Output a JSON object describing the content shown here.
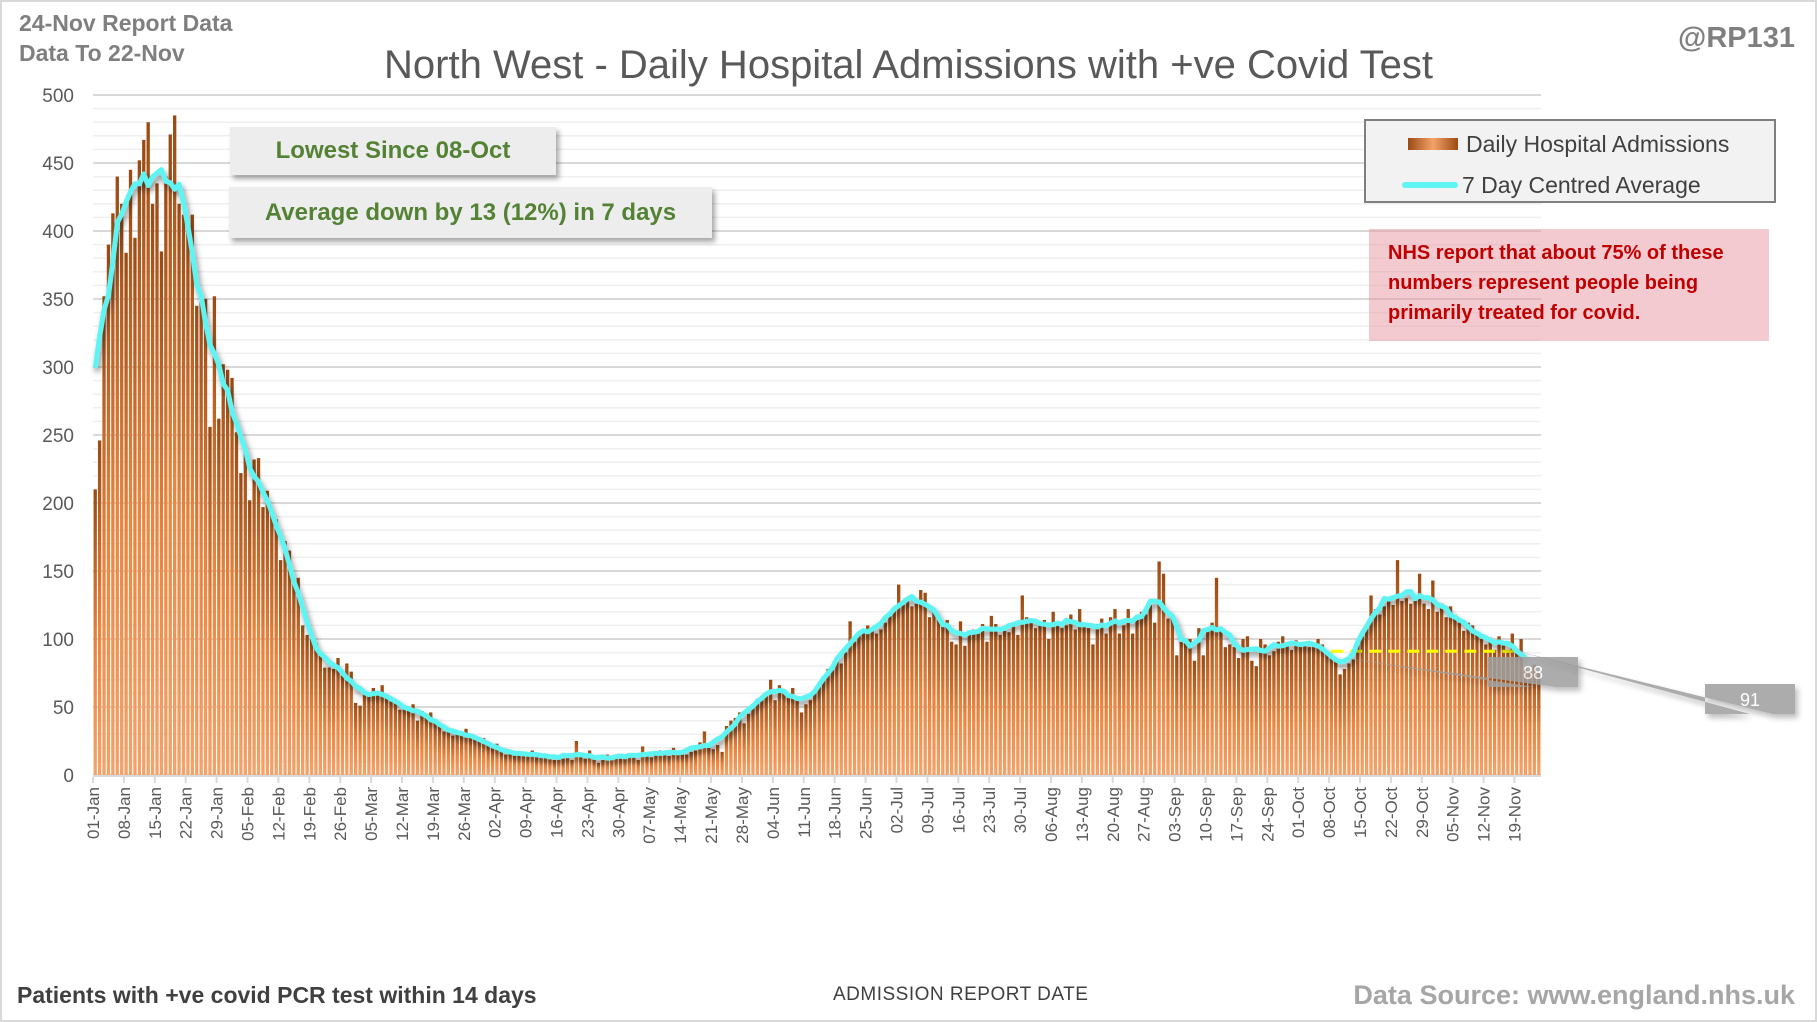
{
  "header": {
    "report_line": "24-Nov Report Data",
    "data_to_line": "Data To 22-Nov",
    "handle": "@RP131"
  },
  "footer": {
    "left_note": "Patients with +ve covid PCR test within 14 days",
    "source": "Data Source: www.england.nhs.uk"
  },
  "annotations": {
    "lowest_since": "Lowest Since 08-Oct",
    "average_change": "Average down by 13 (12%) in 7 days",
    "nhs_note": "NHS report that about 75% of these numbers represent people being primarily treated for covid.",
    "callout_start_label": "88",
    "callout_start_date": "08-Oct",
    "callout_end_label": "91",
    "callout_end_date": "19-Nov",
    "reference_line_value": 91
  },
  "colors": {
    "bar_dark": "#9a4a12",
    "bar_light": "#f4a36a",
    "average_line": "#5ff4f4",
    "reference_line": "#ffff00",
    "annotation_text": "#548235",
    "note_text": "#c00000"
  },
  "chart_data": {
    "type": "bar",
    "title": "North West - Daily Hospital Admissions with +ve Covid Test",
    "xlabel": "ADMISSION REPORT DATE",
    "ylabel": "",
    "ylim": [
      0,
      500
    ],
    "yticks": [
      0,
      50,
      100,
      150,
      200,
      250,
      300,
      350,
      400,
      450,
      500
    ],
    "grid": true,
    "legend": {
      "position": "top-right",
      "entries": [
        "Daily Hospital Admissions",
        "7 Day Centred Average"
      ]
    },
    "x_start": "01-Jan",
    "x_end": "22-Nov",
    "x_tick_labels": [
      "01-Jan",
      "08-Jan",
      "15-Jan",
      "22-Jan",
      "29-Jan",
      "05-Feb",
      "12-Feb",
      "19-Feb",
      "26-Feb",
      "05-Mar",
      "12-Mar",
      "19-Mar",
      "26-Mar",
      "02-Apr",
      "09-Apr",
      "16-Apr",
      "23-Apr",
      "30-Apr",
      "07-May",
      "14-May",
      "21-May",
      "28-May",
      "04-Jun",
      "11-Jun",
      "18-Jun",
      "25-Jun",
      "02-Jul",
      "09-Jul",
      "16-Jul",
      "23-Jul",
      "30-Jul",
      "06-Aug",
      "13-Aug",
      "20-Aug",
      "27-Aug",
      "03-Sep",
      "10-Sep",
      "17-Sep",
      "24-Sep",
      "01-Oct",
      "08-Oct",
      "15-Oct",
      "22-Oct",
      "29-Oct",
      "05-Nov",
      "12-Nov",
      "19-Nov"
    ],
    "series": [
      {
        "name": "Daily Hospital Admissions",
        "type": "bar",
        "values": [
          210,
          246,
          352,
          390,
          413,
          440,
          420,
          384,
          445,
          395,
          452,
          467,
          480,
          420,
          435,
          385,
          440,
          471,
          485,
          420,
          412,
          402,
          412,
          345,
          348,
          350,
          256,
          352,
          262,
          302,
          298,
          292,
          252,
          222,
          242,
          202,
          232,
          233,
          197,
          209,
          195,
          188,
          158,
          172,
          165,
          142,
          145,
          110,
          103,
          100,
          97,
          88,
          79,
          79,
          78,
          86,
          73,
          82,
          76,
          53,
          51,
          62,
          58,
          64,
          60,
          66,
          58,
          54,
          55,
          48,
          51,
          48,
          52,
          40,
          47,
          45,
          46,
          38,
          36,
          32,
          34,
          29,
          32,
          30,
          34,
          28,
          27,
          25,
          27,
          22,
          20,
          23,
          18,
          15,
          17,
          15,
          15,
          16,
          15,
          18,
          13,
          15,
          14,
          14,
          11,
          14,
          12,
          14,
          11,
          25,
          13,
          12,
          18,
          12,
          9,
          11,
          15,
          14,
          14,
          12,
          13,
          16,
          14,
          11,
          21,
          14,
          13,
          16,
          18,
          16,
          14,
          20,
          17,
          16,
          15,
          17,
          18,
          24,
          32,
          20,
          19,
          22,
          17,
          36,
          40,
          42,
          46,
          38,
          45,
          52,
          56,
          58,
          60,
          70,
          55,
          66,
          63,
          58,
          64,
          56,
          46,
          52,
          55,
          61,
          68,
          71,
          78,
          80,
          84,
          82,
          90,
          113,
          98,
          104,
          106,
          110,
          108,
          104,
          107,
          112,
          118,
          122,
          140,
          126,
          130,
          124,
          128,
          136,
          134,
          116,
          122,
          118,
          110,
          114,
          98,
          96,
          113,
          95,
          106,
          107,
          105,
          111,
          98,
          117,
          111,
          103,
          106,
          105,
          110,
          103,
          132,
          116,
          112,
          108,
          110,
          114,
          100,
          120,
          112,
          108,
          110,
          118,
          107,
          122,
          112,
          108,
          96,
          111,
          115,
          104,
          116,
          122,
          104,
          110,
          122,
          104,
          114,
          120,
          118,
          125,
          112,
          157,
          148,
          115,
          116,
          88,
          98,
          97,
          100,
          84,
          108,
          88,
          106,
          112,
          145,
          106,
          94,
          96,
          94,
          86,
          100,
          102,
          84,
          80,
          100,
          96,
          88,
          91,
          98,
          102,
          96,
          92,
          99,
          95,
          98,
          94,
          97,
          100,
          96,
          91,
          88,
          84,
          74,
          78,
          82,
          85,
          96,
          102,
          110,
          132,
          122,
          118,
          124,
          130,
          125,
          158,
          128,
          130,
          126,
          128,
          148,
          126,
          122,
          143,
          120,
          126,
          116,
          124,
          118,
          112,
          106,
          112,
          110,
          105,
          100,
          96,
          101,
          92,
          102,
          98,
          92,
          104,
          90,
          100,
          78,
          76,
          81,
          75
        ]
      },
      {
        "name": "7 Day Centred Average",
        "type": "line",
        "computed_from": "Daily Hospital Admissions (7-day centred mean)"
      }
    ]
  }
}
